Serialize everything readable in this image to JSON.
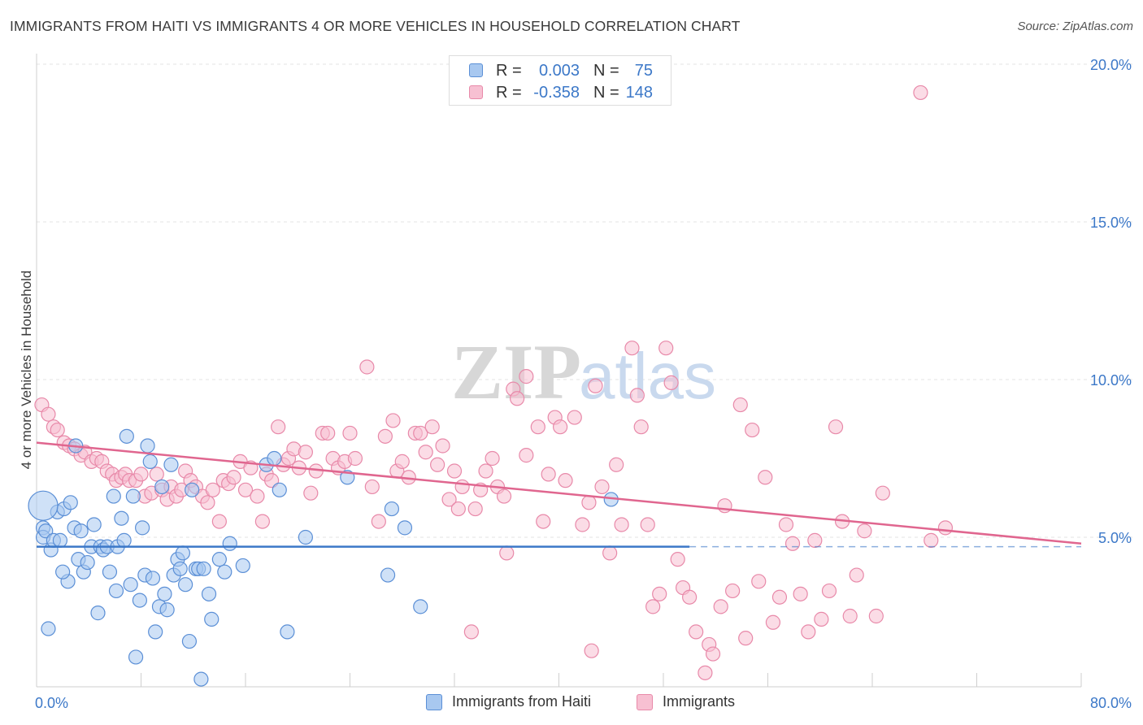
{
  "title": "IMMIGRANTS FROM HAITI VS IMMIGRANTS 4 OR MORE VEHICLES IN HOUSEHOLD CORRELATION CHART",
  "source": "Source: ZipAtlas.com",
  "watermark": {
    "zip": "ZIP",
    "atlas": "atlas"
  },
  "legend": {
    "rows": [
      {
        "r_label": "R =",
        "r_value": "0.003",
        "n_label": "N =",
        "n_value": "75"
      },
      {
        "r_label": "R =",
        "r_value": "-0.358",
        "n_label": "N =",
        "n_value": "148"
      }
    ]
  },
  "chart_data": {
    "type": "scatter",
    "title": "IMMIGRANTS FROM HAITI VS IMMIGRANTS 4 OR MORE VEHICLES IN HOUSEHOLD CORRELATION CHART",
    "xlabel": "",
    "ylabel": "4 or more Vehicles in Household",
    "xlim": [
      0,
      80
    ],
    "ylim": [
      0,
      20.5
    ],
    "x_tick_labels": [
      "0.0%",
      "80.0%"
    ],
    "y_ticks": [
      5,
      10,
      15,
      20
    ],
    "y_tick_labels": [
      "5.0%",
      "10.0%",
      "15.0%",
      "20.0%"
    ],
    "grid": "horizontal dashed",
    "legend_position": "bottom-center",
    "colors": {
      "haiti_fill": "#a8c8f0",
      "haiti_stroke": "#5b8fd6",
      "haiti_line": "#3c78c8",
      "imm_fill": "#f7c0d2",
      "imm_stroke": "#e889a9",
      "imm_line": "#e0668f",
      "tick_label": "#3c78c8",
      "grid": "#e3e3e3"
    },
    "series": [
      {
        "name": "Immigrants from Haiti",
        "r": 0.003,
        "n": 75,
        "trend": {
          "x": [
            0,
            50
          ],
          "y": [
            4.7,
            4.7
          ],
          "dashed_extension_to": 80
        },
        "points": [
          [
            0.5,
            5.3
          ],
          [
            0.5,
            5.0
          ],
          [
            0.7,
            5.2
          ],
          [
            0.9,
            2.1
          ],
          [
            1.1,
            4.6
          ],
          [
            1.3,
            4.9
          ],
          [
            1.6,
            5.8
          ],
          [
            1.8,
            4.9
          ],
          [
            2.1,
            5.9
          ],
          [
            2.4,
            3.6
          ],
          [
            2.6,
            6.1
          ],
          [
            2.9,
            5.3
          ],
          [
            3.2,
            4.3
          ],
          [
            3.4,
            5.2
          ],
          [
            3.6,
            3.9
          ],
          [
            3.9,
            4.2
          ],
          [
            4.2,
            4.7
          ],
          [
            4.4,
            5.4
          ],
          [
            4.7,
            2.6
          ],
          [
            4.9,
            4.7
          ],
          [
            5.1,
            4.6
          ],
          [
            5.4,
            4.7
          ],
          [
            5.6,
            3.9
          ],
          [
            5.9,
            6.3
          ],
          [
            6.1,
            3.3
          ],
          [
            6.2,
            4.7
          ],
          [
            6.5,
            5.6
          ],
          [
            6.7,
            4.9
          ],
          [
            6.9,
            8.2
          ],
          [
            7.2,
            3.5
          ],
          [
            7.4,
            6.3
          ],
          [
            7.6,
            1.2
          ],
          [
            7.9,
            3.0
          ],
          [
            8.1,
            5.3
          ],
          [
            8.3,
            3.8
          ],
          [
            8.5,
            7.9
          ],
          [
            8.7,
            7.4
          ],
          [
            8.9,
            3.7
          ],
          [
            9.1,
            2.0
          ],
          [
            9.4,
            2.8
          ],
          [
            9.6,
            6.6
          ],
          [
            9.8,
            3.2
          ],
          [
            10.0,
            2.7
          ],
          [
            10.3,
            7.3
          ],
          [
            10.5,
            3.8
          ],
          [
            10.8,
            4.3
          ],
          [
            11.0,
            4.0
          ],
          [
            11.2,
            4.5
          ],
          [
            11.4,
            3.5
          ],
          [
            11.7,
            1.7
          ],
          [
            11.9,
            6.5
          ],
          [
            12.2,
            4.0
          ],
          [
            12.4,
            4.0
          ],
          [
            12.6,
            0.5
          ],
          [
            12.8,
            4.0
          ],
          [
            13.2,
            3.2
          ],
          [
            13.4,
            2.4
          ],
          [
            14.0,
            4.3
          ],
          [
            14.4,
            3.9
          ],
          [
            14.8,
            4.8
          ],
          [
            15.8,
            4.1
          ],
          [
            17.6,
            7.3
          ],
          [
            18.2,
            7.5
          ],
          [
            18.6,
            6.5
          ],
          [
            19.2,
            2.0
          ],
          [
            20.6,
            5.0
          ],
          [
            23.8,
            6.9
          ],
          [
            26.9,
            3.8
          ],
          [
            27.2,
            5.9
          ],
          [
            28.2,
            5.3
          ],
          [
            29.4,
            2.8
          ],
          [
            44.0,
            6.2
          ],
          [
            0.5,
            6.0
          ],
          [
            2.0,
            3.9
          ],
          [
            3.0,
            7.9
          ]
        ]
      },
      {
        "name": "Immigrants",
        "r": -0.358,
        "n": 148,
        "trend": {
          "x": [
            0,
            80
          ],
          "y": [
            8.0,
            4.8
          ]
        },
        "points": [
          [
            0.4,
            9.2
          ],
          [
            0.9,
            8.9
          ],
          [
            1.3,
            8.5
          ],
          [
            1.6,
            8.4
          ],
          [
            2.1,
            8.0
          ],
          [
            2.5,
            7.9
          ],
          [
            2.9,
            7.8
          ],
          [
            3.4,
            7.6
          ],
          [
            3.7,
            7.7
          ],
          [
            4.2,
            7.4
          ],
          [
            4.6,
            7.5
          ],
          [
            5.0,
            7.4
          ],
          [
            5.4,
            7.1
          ],
          [
            5.8,
            7.0
          ],
          [
            6.1,
            6.8
          ],
          [
            6.5,
            6.9
          ],
          [
            6.8,
            7.0
          ],
          [
            7.1,
            6.8
          ],
          [
            7.6,
            6.8
          ],
          [
            8.0,
            7.0
          ],
          [
            8.3,
            6.3
          ],
          [
            8.8,
            6.4
          ],
          [
            9.2,
            7.0
          ],
          [
            9.6,
            6.5
          ],
          [
            10.0,
            6.2
          ],
          [
            10.3,
            6.6
          ],
          [
            10.7,
            6.3
          ],
          [
            11.1,
            6.5
          ],
          [
            11.4,
            7.1
          ],
          [
            11.8,
            6.8
          ],
          [
            12.2,
            6.6
          ],
          [
            12.7,
            6.3
          ],
          [
            13.1,
            6.1
          ],
          [
            13.5,
            6.5
          ],
          [
            14.0,
            5.5
          ],
          [
            14.3,
            6.8
          ],
          [
            14.7,
            6.7
          ],
          [
            15.1,
            6.9
          ],
          [
            15.6,
            7.4
          ],
          [
            16.0,
            6.5
          ],
          [
            16.4,
            7.2
          ],
          [
            16.9,
            6.3
          ],
          [
            17.3,
            5.5
          ],
          [
            17.6,
            7.0
          ],
          [
            18.0,
            6.8
          ],
          [
            18.5,
            8.5
          ],
          [
            18.9,
            7.3
          ],
          [
            19.3,
            7.5
          ],
          [
            19.7,
            7.8
          ],
          [
            20.1,
            7.2
          ],
          [
            20.6,
            7.7
          ],
          [
            21.0,
            6.4
          ],
          [
            21.4,
            7.1
          ],
          [
            21.9,
            8.3
          ],
          [
            22.3,
            8.3
          ],
          [
            22.7,
            7.5
          ],
          [
            23.1,
            7.2
          ],
          [
            23.6,
            7.4
          ],
          [
            24.0,
            8.3
          ],
          [
            24.4,
            7.5
          ],
          [
            25.3,
            10.4
          ],
          [
            25.7,
            6.6
          ],
          [
            26.2,
            5.5
          ],
          [
            26.7,
            8.2
          ],
          [
            27.3,
            8.7
          ],
          [
            27.6,
            7.1
          ],
          [
            28.0,
            7.4
          ],
          [
            28.5,
            6.9
          ],
          [
            29.0,
            8.3
          ],
          [
            29.4,
            8.3
          ],
          [
            29.8,
            7.7
          ],
          [
            30.3,
            8.5
          ],
          [
            30.7,
            7.3
          ],
          [
            31.1,
            7.9
          ],
          [
            31.6,
            6.2
          ],
          [
            32.0,
            7.1
          ],
          [
            32.3,
            5.9
          ],
          [
            32.6,
            6.6
          ],
          [
            33.3,
            2.0
          ],
          [
            33.6,
            5.9
          ],
          [
            34.0,
            6.5
          ],
          [
            34.4,
            7.1
          ],
          [
            34.9,
            7.5
          ],
          [
            35.3,
            6.6
          ],
          [
            35.8,
            6.3
          ],
          [
            36.5,
            9.7
          ],
          [
            36.8,
            9.4
          ],
          [
            37.5,
            10.1
          ],
          [
            37.5,
            7.6
          ],
          [
            38.4,
            8.5
          ],
          [
            38.8,
            5.5
          ],
          [
            39.2,
            7.0
          ],
          [
            39.7,
            8.8
          ],
          [
            40.1,
            8.5
          ],
          [
            40.5,
            6.8
          ],
          [
            41.2,
            8.8
          ],
          [
            41.8,
            5.4
          ],
          [
            42.3,
            6.1
          ],
          [
            42.8,
            9.8
          ],
          [
            43.3,
            6.6
          ],
          [
            43.9,
            4.5
          ],
          [
            44.4,
            7.3
          ],
          [
            44.8,
            5.4
          ],
          [
            45.6,
            11.0
          ],
          [
            46.0,
            9.5
          ],
          [
            46.3,
            8.5
          ],
          [
            46.8,
            5.4
          ],
          [
            47.2,
            2.8
          ],
          [
            47.7,
            3.2
          ],
          [
            48.2,
            11.0
          ],
          [
            48.6,
            9.9
          ],
          [
            49.1,
            4.3
          ],
          [
            49.5,
            3.4
          ],
          [
            50.0,
            3.1
          ],
          [
            50.5,
            2.0
          ],
          [
            51.2,
            0.7
          ],
          [
            51.5,
            1.6
          ],
          [
            51.8,
            1.3
          ],
          [
            52.4,
            2.8
          ],
          [
            52.7,
            6.0
          ],
          [
            53.3,
            3.3
          ],
          [
            53.9,
            9.2
          ],
          [
            54.3,
            1.8
          ],
          [
            54.8,
            8.4
          ],
          [
            55.3,
            3.6
          ],
          [
            55.8,
            6.9
          ],
          [
            56.4,
            2.3
          ],
          [
            56.9,
            3.1
          ],
          [
            57.4,
            5.4
          ],
          [
            57.9,
            4.8
          ],
          [
            58.5,
            3.2
          ],
          [
            59.1,
            2.0
          ],
          [
            59.6,
            4.9
          ],
          [
            60.1,
            2.4
          ],
          [
            60.7,
            3.3
          ],
          [
            61.2,
            8.5
          ],
          [
            61.7,
            5.5
          ],
          [
            62.3,
            2.5
          ],
          [
            62.8,
            3.8
          ],
          [
            63.4,
            5.2
          ],
          [
            64.3,
            2.5
          ],
          [
            64.8,
            6.4
          ],
          [
            67.7,
            19.1
          ],
          [
            69.6,
            5.3
          ],
          [
            68.5,
            4.9
          ],
          [
            36.0,
            4.5
          ],
          [
            42.5,
            1.4
          ]
        ]
      }
    ]
  },
  "bottom_legend": {
    "items": [
      {
        "label": "Immigrants from Haiti"
      },
      {
        "label": "Immigrants"
      }
    ]
  }
}
